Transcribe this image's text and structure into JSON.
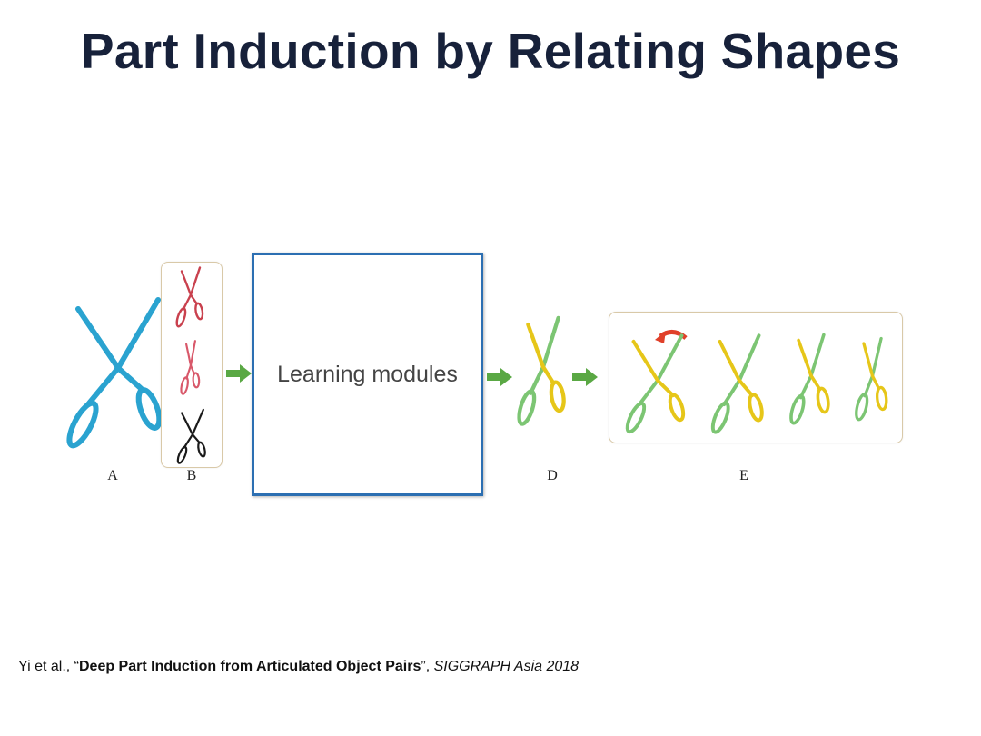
{
  "title": "Part Induction by Relating Shapes",
  "diagram": {
    "learning_box_label": "Learning modules",
    "labels": {
      "a": "A",
      "b": "B",
      "d": "D",
      "e": "E"
    },
    "colors": {
      "box_border": "#2c6fb2",
      "arrow": "#5aa844",
      "scissors_a": "#2aa3d0",
      "scissors_b_top": "#c9414e",
      "scissors_b_mid": "#d8586a",
      "scissors_b_bottom": "#1a1a1a",
      "part_moving": "#e6c619",
      "part_static": "#7cc573",
      "rotation_arrow": "#e0402a"
    }
  },
  "citation": {
    "authors": "Yi et al., “",
    "paper_title": "Deep Part Induction from Articulated Object Pairs",
    "after_title": "”, ",
    "venue": "SIGGRAPH Asia 2018"
  }
}
